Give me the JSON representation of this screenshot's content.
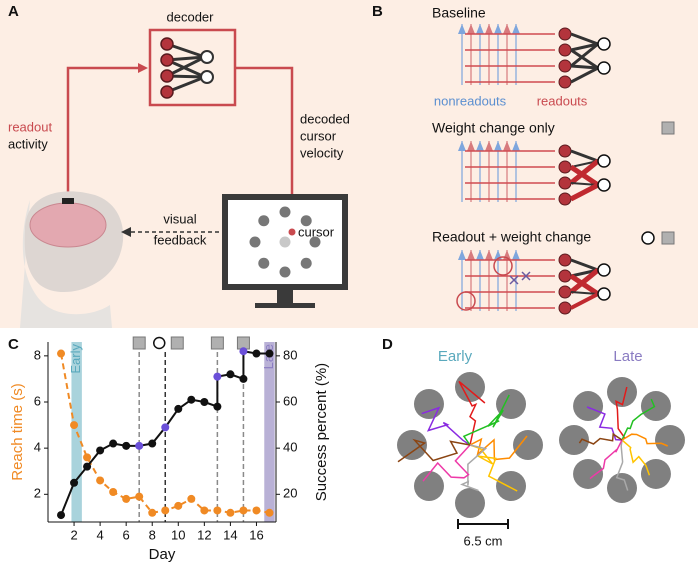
{
  "panel_a": {
    "label": "A",
    "decoder": "decoder",
    "readout": "readout",
    "activity": "activity",
    "decoded": [
      "decoded",
      "cursor",
      "velocity"
    ],
    "cursor": "cursor",
    "feedback": [
      "visual",
      "feedback"
    ]
  },
  "panel_b": {
    "label": "B",
    "baseline": "Baseline",
    "nonreadouts": "nonreadouts",
    "readouts": "readouts",
    "weight_only": "Weight change only",
    "readout_weight": "Readout + weight change"
  },
  "chart_data": {
    "type": "line",
    "label": "C",
    "xlabel": "Day",
    "ylabel": "Reach time (s)",
    "y2label": "Success percent (%)",
    "xlim": [
      0,
      17.5
    ],
    "xticks": [
      2,
      4,
      6,
      8,
      10,
      12,
      14,
      16
    ],
    "ylim": [
      0.8,
      8.6
    ],
    "yticks": [
      2,
      4,
      6,
      8
    ],
    "y2lim": [
      8,
      86
    ],
    "y2ticks": [
      20,
      40,
      60,
      80
    ],
    "series": [
      {
        "color": "#f08a24",
        "dash": true,
        "x": [
          1,
          2,
          3,
          4,
          5,
          6,
          7,
          8,
          9,
          10,
          11,
          12,
          13,
          14,
          15,
          16,
          17
        ],
        "values": [
          8.1,
          5.0,
          3.6,
          2.6,
          2.1,
          1.8,
          1.9,
          1.2,
          1.3,
          1.5,
          1.8,
          1.3,
          1.3,
          1.2,
          1.3,
          1.3,
          1.2
        ]
      },
      {
        "color": "#111111",
        "axis": "y2",
        "x": [
          1,
          2,
          3,
          4,
          5,
          6,
          7,
          8,
          9,
          10,
          11,
          12,
          13,
          13,
          14,
          15,
          15,
          16,
          17
        ],
        "values": [
          11,
          25,
          32,
          39,
          42,
          41,
          41,
          42,
          49,
          57,
          61,
          60,
          58,
          71,
          72,
          70,
          82,
          81,
          81
        ],
        "point_colors": [
          "#111111",
          "#111111",
          "#111111",
          "#111111",
          "#111111",
          "#111111",
          "#6a4fd8",
          "#111111",
          "#6a4fd8",
          "#111111",
          "#111111",
          "#111111",
          "#111111",
          "#6a4fd8",
          "#111111",
          "#111111",
          "#6a4fd8",
          "#111111",
          "#111111"
        ]
      }
    ],
    "bands": [
      {
        "label": "Early",
        "from": 1.8,
        "to": 2.6,
        "color": "#a9d3dc",
        "text_color": "#5aa9bd"
      },
      {
        "label": "Late",
        "from": 16.6,
        "to": 17.4,
        "color": "#b9b1d6",
        "text_color": "#8a7cc2"
      }
    ],
    "vlines": [
      {
        "x": 7,
        "color": "#8a8a8a",
        "icon": "square"
      },
      {
        "x": 9,
        "color": "#333333",
        "icon": "circle-square"
      },
      {
        "x": 13,
        "color": "#8a8a8a",
        "icon": "square"
      },
      {
        "x": 15,
        "color": "#8a8a8a",
        "icon": "square"
      }
    ]
  },
  "panel_d": {
    "label": "D",
    "early": "Early",
    "late": "Late",
    "scale": "6.5 cm"
  }
}
